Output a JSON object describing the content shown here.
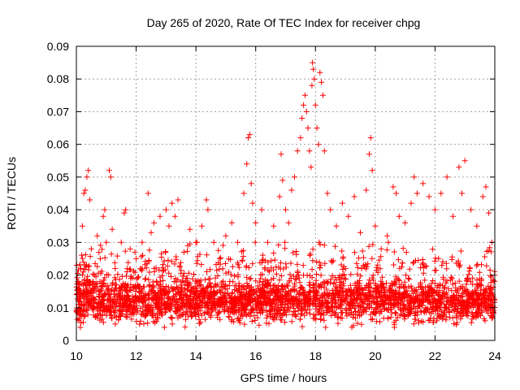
{
  "chart_data": {
    "type": "scatter",
    "title": "Day 265 of 2020, Rate Of TEC Index for receiver chpg",
    "xlabel": "GPS time / hours",
    "ylabel": "ROTI / TECUs",
    "xlim": [
      10,
      24
    ],
    "ylim": [
      0,
      0.09
    ],
    "xticks": [
      10,
      12,
      14,
      16,
      18,
      20,
      22,
      24
    ],
    "xtick_labels": [
      "10",
      "12",
      "14",
      "16",
      "18",
      "20",
      "22",
      "24"
    ],
    "yticks": [
      0,
      0.01,
      0.02,
      0.03,
      0.04,
      0.05,
      0.06,
      0.07,
      0.08,
      0.09
    ],
    "ytick_labels": [
      "0",
      "0.01",
      "0.02",
      "0.03",
      "0.04",
      "0.05",
      "0.06",
      "0.07",
      "0.08",
      "0.09"
    ],
    "grid": true,
    "marker": "+",
    "color": "#ff0000",
    "series": [
      {
        "name": "ROTI",
        "points": [
          [
            10.05,
            0.018
          ],
          [
            10.1,
            0.012
          ],
          [
            10.15,
            0.022
          ],
          [
            10.2,
            0.035
          ],
          [
            10.25,
            0.045
          ],
          [
            10.3,
            0.046
          ],
          [
            10.35,
            0.05
          ],
          [
            10.4,
            0.052
          ],
          [
            10.45,
            0.043
          ],
          [
            10.5,
            0.028
          ],
          [
            10.6,
            0.02
          ],
          [
            10.7,
            0.032
          ],
          [
            10.8,
            0.025
          ],
          [
            10.9,
            0.038
          ],
          [
            10.95,
            0.04
          ],
          [
            11.0,
            0.03
          ],
          [
            11.1,
            0.052
          ],
          [
            11.15,
            0.05
          ],
          [
            11.2,
            0.034
          ],
          [
            11.3,
            0.022
          ],
          [
            11.5,
            0.03
          ],
          [
            11.6,
            0.039
          ],
          [
            11.65,
            0.04
          ],
          [
            11.8,
            0.028
          ],
          [
            12.0,
            0.025
          ],
          [
            12.2,
            0.03
          ],
          [
            12.4,
            0.045
          ],
          [
            12.5,
            0.033
          ],
          [
            12.6,
            0.036
          ],
          [
            12.8,
            0.038
          ],
          [
            13.0,
            0.04
          ],
          [
            13.1,
            0.035
          ],
          [
            13.2,
            0.042
          ],
          [
            13.3,
            0.038
          ],
          [
            13.4,
            0.043
          ],
          [
            13.6,
            0.027
          ],
          [
            13.8,
            0.034
          ],
          [
            14.0,
            0.03
          ],
          [
            14.2,
            0.035
          ],
          [
            14.35,
            0.043
          ],
          [
            14.4,
            0.04
          ],
          [
            14.6,
            0.03
          ],
          [
            14.8,
            0.025
          ],
          [
            15.0,
            0.032
          ],
          [
            15.2,
            0.036
          ],
          [
            15.4,
            0.03
          ],
          [
            15.6,
            0.045
          ],
          [
            15.7,
            0.054
          ],
          [
            15.75,
            0.062
          ],
          [
            15.8,
            0.063
          ],
          [
            15.85,
            0.048
          ],
          [
            15.9,
            0.042
          ],
          [
            16.0,
            0.036
          ],
          [
            16.2,
            0.04
          ],
          [
            16.4,
            0.03
          ],
          [
            16.6,
            0.035
          ],
          [
            16.8,
            0.044
          ],
          [
            16.85,
            0.057
          ],
          [
            16.9,
            0.049
          ],
          [
            17.0,
            0.04
          ],
          [
            17.1,
            0.036
          ],
          [
            17.2,
            0.046
          ],
          [
            17.3,
            0.05
          ],
          [
            17.4,
            0.058
          ],
          [
            17.5,
            0.062
          ],
          [
            17.55,
            0.068
          ],
          [
            17.6,
            0.072
          ],
          [
            17.65,
            0.075
          ],
          [
            17.7,
            0.07
          ],
          [
            17.75,
            0.065
          ],
          [
            17.8,
            0.058
          ],
          [
            17.85,
            0.053
          ],
          [
            17.88,
            0.078
          ],
          [
            17.9,
            0.085
          ],
          [
            17.93,
            0.083
          ],
          [
            17.96,
            0.08
          ],
          [
            18.0,
            0.072
          ],
          [
            18.05,
            0.065
          ],
          [
            18.1,
            0.06
          ],
          [
            18.15,
            0.082
          ],
          [
            18.2,
            0.079
          ],
          [
            18.25,
            0.075
          ],
          [
            18.3,
            0.058
          ],
          [
            18.4,
            0.045
          ],
          [
            18.5,
            0.04
          ],
          [
            18.7,
            0.035
          ],
          [
            18.9,
            0.042
          ],
          [
            19.1,
            0.038
          ],
          [
            19.3,
            0.044
          ],
          [
            19.5,
            0.033
          ],
          [
            19.7,
            0.046
          ],
          [
            19.8,
            0.057
          ],
          [
            19.85,
            0.062
          ],
          [
            19.9,
            0.052
          ],
          [
            20.0,
            0.035
          ],
          [
            20.2,
            0.028
          ],
          [
            20.4,
            0.032
          ],
          [
            20.6,
            0.047
          ],
          [
            20.7,
            0.045
          ],
          [
            20.8,
            0.038
          ],
          [
            21.0,
            0.036
          ],
          [
            21.2,
            0.042
          ],
          [
            21.3,
            0.05
          ],
          [
            21.4,
            0.045
          ],
          [
            21.6,
            0.048
          ],
          [
            21.8,
            0.044
          ],
          [
            22.0,
            0.04
          ],
          [
            22.2,
            0.045
          ],
          [
            22.4,
            0.05
          ],
          [
            22.6,
            0.038
          ],
          [
            22.8,
            0.053
          ],
          [
            22.9,
            0.045
          ],
          [
            23.0,
            0.055
          ],
          [
            23.2,
            0.04
          ],
          [
            23.4,
            0.035
          ],
          [
            23.6,
            0.044
          ],
          [
            23.7,
            0.047
          ],
          [
            23.8,
            0.039
          ],
          [
            23.9,
            0.03
          ],
          [
            24.0,
            0.02
          ]
        ]
      }
    ],
    "dense_band": {
      "description": "thousands of ROTI samples concentrated near the baseline",
      "x_range": [
        10,
        24
      ],
      "base_y": 0.012,
      "y_min": 0.004,
      "y_max": 0.03,
      "count": 3200
    }
  }
}
